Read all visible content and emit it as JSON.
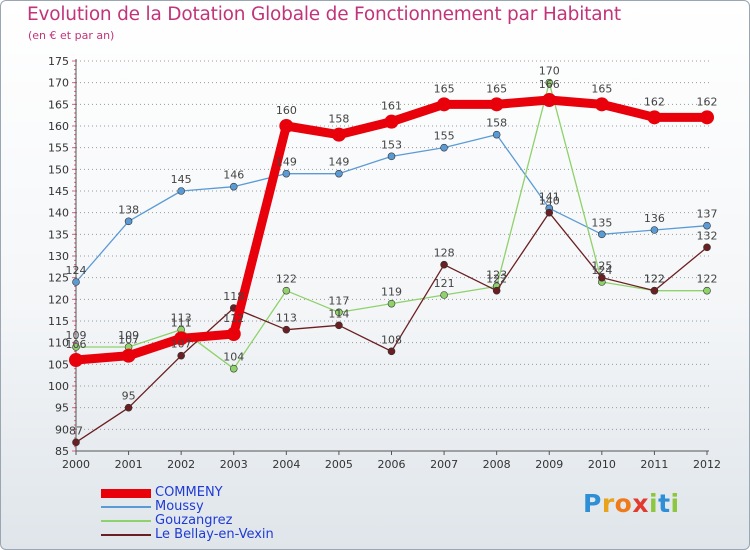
{
  "header": {
    "title": "Evolution de la Dotation Globale de Fonctionnement par Habitant",
    "subtitle": "(en € et par an)"
  },
  "brand": {
    "name": "Proxiti",
    "letters": [
      "P",
      "r",
      "o",
      "x",
      "i",
      "t",
      "i"
    ],
    "letter_colors": [
      "#2e8fd6",
      "#e8a21b",
      "#f07a1a",
      "#e23b2e",
      "#8dc63f",
      "#2e8fd6",
      "#8dc63f"
    ]
  },
  "chart_data": {
    "type": "line",
    "title": "Evolution de la Dotation Globale de Fonctionnement par Habitant",
    "subtitle": "(en € et par an)",
    "xlabel": "",
    "ylabel": "",
    "ylim": [
      85,
      175
    ],
    "ytick_step": 5,
    "grid": "dotted-horizontal",
    "legend_position": "bottom-left",
    "categories": [
      "2000",
      "2001",
      "2002",
      "2003",
      "2004",
      "2005",
      "2006",
      "2007",
      "2008",
      "2009",
      "2010",
      "2011",
      "2012"
    ],
    "series": [
      {
        "name": "COMMENY",
        "color": "#e8000b",
        "emphasis": true,
        "values": [
          106,
          107,
          111,
          112,
          160,
          158,
          161,
          165,
          165,
          166,
          165,
          162,
          162
        ],
        "labels": [
          "106",
          "107",
          "111",
          "112",
          "160",
          "158",
          "161",
          "165",
          "165",
          "166",
          "165",
          "162",
          "162"
        ]
      },
      {
        "name": "Moussy",
        "color": "#5b9bd5",
        "emphasis": false,
        "values": [
          124,
          138,
          145,
          146,
          149,
          149,
          153,
          155,
          158,
          141,
          135,
          136,
          137
        ],
        "labels": [
          "124",
          "138",
          "145",
          "146",
          "149",
          "149",
          "153",
          "155",
          "158",
          "141",
          "135",
          "136",
          "137"
        ]
      },
      {
        "name": "Gouzangrez",
        "color": "#8fd16a",
        "emphasis": false,
        "values": [
          109,
          109,
          113,
          104,
          122,
          117,
          119,
          121,
          123,
          170,
          124,
          122,
          122
        ],
        "labels": [
          "109",
          "109",
          "113",
          "104",
          "122",
          "117",
          "119",
          "121",
          "123",
          "170",
          "124",
          "122",
          "122"
        ]
      },
      {
        "name": "Le Bellay-en-Vexin",
        "color": "#6b1f22",
        "emphasis": false,
        "values": [
          87,
          95,
          107,
          118,
          113,
          114,
          108,
          128,
          122,
          140,
          125,
          122,
          132
        ],
        "labels": [
          "87",
          "95",
          "107",
          "118",
          "113",
          "114",
          "108",
          "128",
          "122",
          "140",
          "125",
          "122",
          "132"
        ]
      }
    ]
  }
}
